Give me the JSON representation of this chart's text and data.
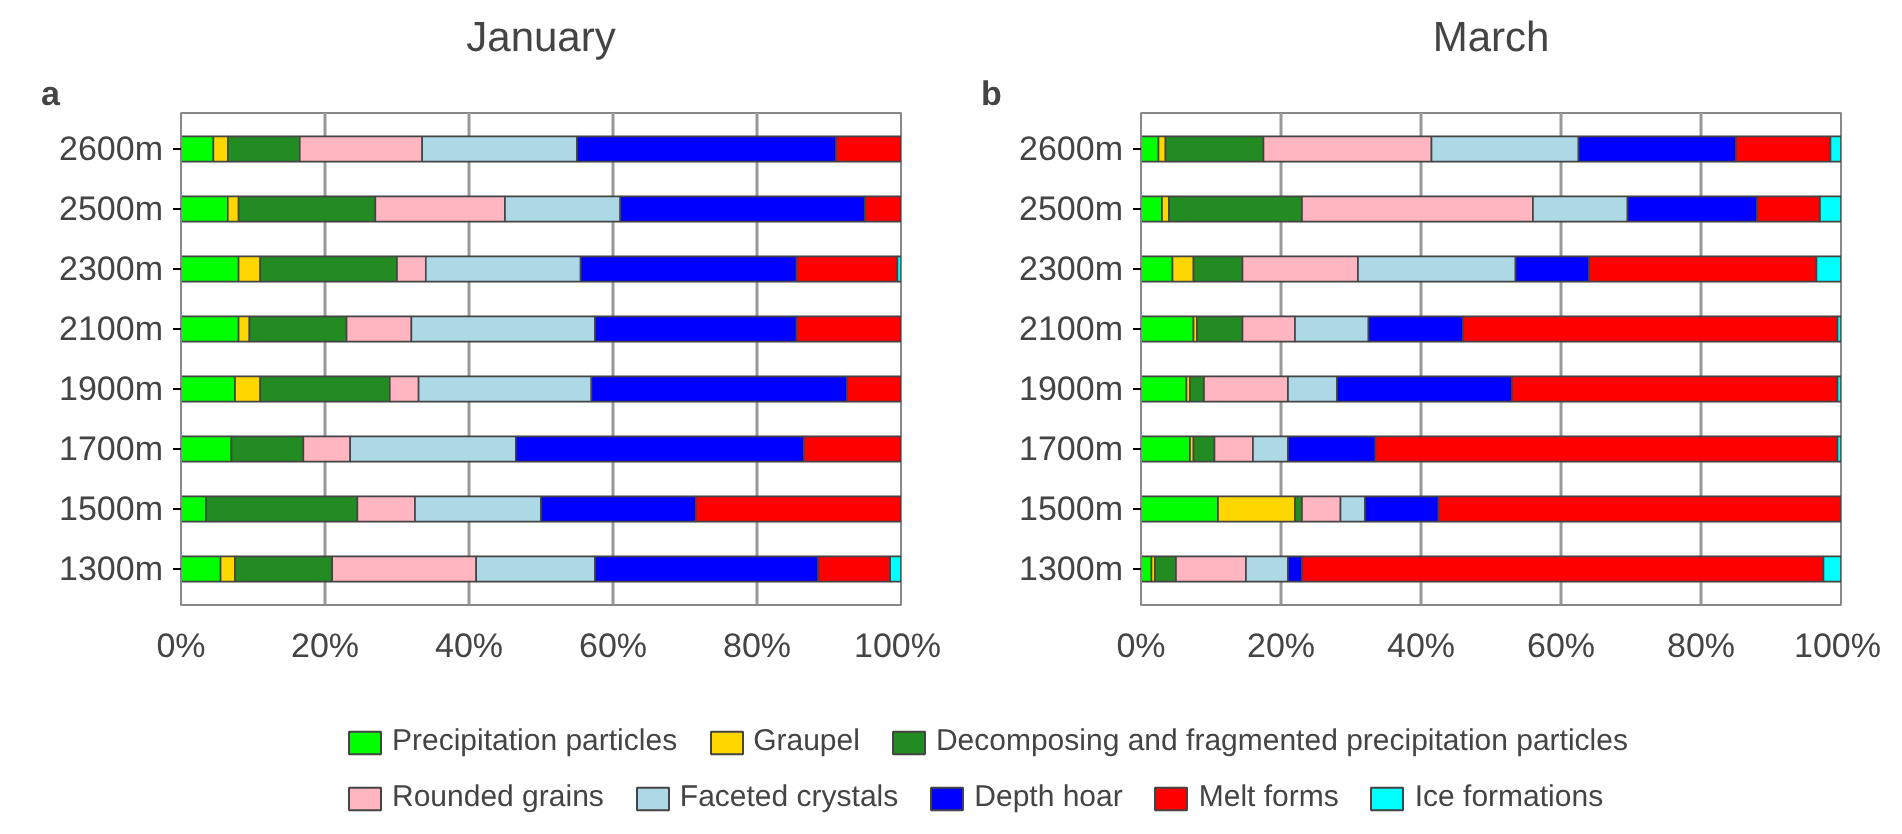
{
  "chart_data": [
    {
      "type": "bar",
      "orientation": "horizontal",
      "stacked": true,
      "title": "January",
      "annotations": [
        "a"
      ],
      "categories": [
        "2600m",
        "2500m",
        "2300m",
        "2100m",
        "1900m",
        "1700m",
        "1500m",
        "1300m"
      ],
      "xlim": [
        0,
        100
      ],
      "xticks": [
        {
          "value": 0,
          "label": "0%"
        },
        {
          "value": 20,
          "label": "20%"
        },
        {
          "value": 40,
          "label": "40%"
        },
        {
          "value": 60,
          "label": "60%"
        },
        {
          "value": 80,
          "label": "80%"
        },
        {
          "value": 100,
          "label": "100%"
        }
      ],
      "grid": "x",
      "legend": "bottom",
      "series": [
        {
          "name": "Precipitation particles",
          "color": "#00ff00",
          "values": [
            4.5,
            6.5,
            8,
            8,
            7.5,
            7,
            3.5,
            5.5
          ]
        },
        {
          "name": "Graupel",
          "color": "#ffd700",
          "values": [
            2,
            1.5,
            3,
            1.5,
            3.5,
            0,
            0,
            2
          ]
        },
        {
          "name": "Decomposing and fragmented precipitation particles",
          "color": "#228b22",
          "values": [
            10,
            19,
            19,
            13.5,
            18,
            10,
            21,
            13.5
          ]
        },
        {
          "name": "Rounded grains",
          "color": "#ffb6c1",
          "values": [
            17,
            18,
            4,
            9,
            4,
            6.5,
            8,
            20
          ]
        },
        {
          "name": "Faceted crystals",
          "color": "#add8e6",
          "values": [
            21.5,
            16,
            21.5,
            25.5,
            24,
            23,
            17.5,
            16.5
          ]
        },
        {
          "name": "Depth hoar",
          "color": "#0000ff",
          "values": [
            36,
            34,
            30,
            28,
            35.5,
            40,
            21.5,
            31
          ]
        },
        {
          "name": "Melt forms",
          "color": "#ff0000",
          "values": [
            9,
            5,
            14,
            14.5,
            7.5,
            13.5,
            28.5,
            10
          ]
        },
        {
          "name": "Ice formations",
          "color": "#00ffff",
          "values": [
            0,
            0,
            0.5,
            0,
            0,
            0,
            0,
            1.5
          ]
        }
      ]
    },
    {
      "type": "bar",
      "orientation": "horizontal",
      "stacked": true,
      "title": "March",
      "annotations": [
        "b"
      ],
      "categories": [
        "2600m",
        "2500m",
        "2300m",
        "2100m",
        "1900m",
        "1700m",
        "1500m",
        "1300m"
      ],
      "xlim": [
        0,
        100
      ],
      "xticks": [
        {
          "value": 0,
          "label": "0%"
        },
        {
          "value": 20,
          "label": "20%"
        },
        {
          "value": 40,
          "label": "40%"
        },
        {
          "value": 60,
          "label": "60%"
        },
        {
          "value": 80,
          "label": "80%"
        },
        {
          "value": 100,
          "label": "100%"
        }
      ],
      "grid": "x",
      "legend": "bottom",
      "series": [
        {
          "name": "Precipitation particles",
          "color": "#00ff00",
          "values": [
            2.5,
            3,
            4.5,
            7.5,
            6.5,
            7,
            11,
            1.5
          ]
        },
        {
          "name": "Graupel",
          "color": "#ffd700",
          "values": [
            1,
            1,
            3,
            0.5,
            0.5,
            0.5,
            11,
            0.5
          ]
        },
        {
          "name": "Decomposing and fragmented precipitation particles",
          "color": "#228b22",
          "values": [
            14,
            19,
            7,
            6.5,
            2,
            3,
            1,
            3
          ]
        },
        {
          "name": "Rounded grains",
          "color": "#ffb6c1",
          "values": [
            24,
            33,
            16.5,
            7.5,
            12,
            5.5,
            5.5,
            10
          ]
        },
        {
          "name": "Faceted crystals",
          "color": "#add8e6",
          "values": [
            21,
            13.5,
            22.5,
            10.5,
            7,
            5,
            3.5,
            6
          ]
        },
        {
          "name": "Depth hoar",
          "color": "#0000ff",
          "values": [
            22.5,
            18.5,
            10.5,
            13.5,
            25,
            12.5,
            10.5,
            2
          ]
        },
        {
          "name": "Melt forms",
          "color": "#ff0000",
          "values": [
            13.5,
            9,
            32.5,
            53.5,
            46.5,
            66,
            57.5,
            74.5
          ]
        },
        {
          "name": "Ice formations",
          "color": "#00ffff",
          "values": [
            1.5,
            3,
            3.5,
            0.5,
            0.5,
            0.5,
            0,
            2.5
          ]
        }
      ]
    }
  ]
}
